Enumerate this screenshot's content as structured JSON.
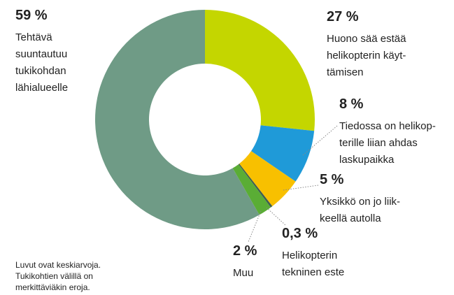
{
  "chart_data": {
    "type": "donut",
    "categories": [
      [
        "Huono sää estää",
        "helikopterin käyt-",
        "tämisen"
      ],
      [
        "Tiedossa on helikop-",
        "terille liian ahdas",
        "laskupaikka"
      ],
      [
        "Yksikkö on jo liik-",
        "keellä autolla"
      ],
      [
        "Helikopterin",
        "tekninen este"
      ],
      [
        "Muu"
      ],
      [
        "Tehtävä",
        "suuntautuu",
        "tukikohdan",
        "lähialueelle"
      ]
    ],
    "values": [
      27,
      8,
      5,
      0.3,
      2,
      59
    ],
    "value_labels": [
      "27 %",
      "8 %",
      "5 %",
      "0,3 %",
      "2 %",
      "59 %"
    ],
    "colors": [
      "#c4d600",
      "#1f9ad8",
      "#f8c000",
      "#3f5f4f",
      "#5aad35",
      "#6f9b86"
    ],
    "note": [
      "Luvut ovat keskiarvoja.",
      "Tukikohtien välillä on",
      "merkittäviäkin eroja."
    ]
  }
}
